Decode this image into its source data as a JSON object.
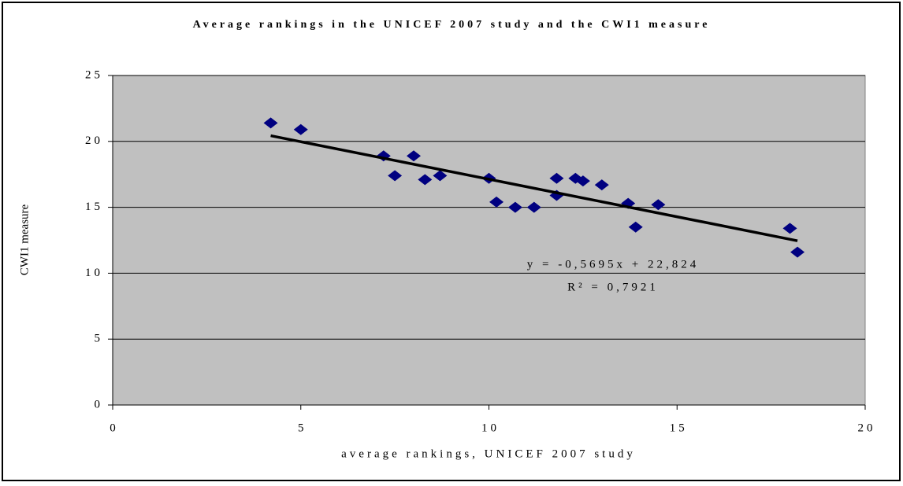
{
  "chart_data": {
    "type": "scatter",
    "title": "Average rankings in the UNICEF 2007 study and the CWI1 measure",
    "x_label": "average rankings, UNICEF 2007 study",
    "y_label": "CWI1 measure",
    "x": [
      4.2,
      5.0,
      7.2,
      7.5,
      8.0,
      8.3,
      8.7,
      10.0,
      10.2,
      10.7,
      11.2,
      11.8,
      11.8,
      12.3,
      12.5,
      13.0,
      13.7,
      13.9,
      14.5,
      18.0,
      18.2
    ],
    "values": [
      21.4,
      20.9,
      18.9,
      17.4,
      18.9,
      17.1,
      17.4,
      17.2,
      15.4,
      15.0,
      15.0,
      15.9,
      17.2,
      17.2,
      17.0,
      16.7,
      15.3,
      13.5,
      15.2,
      13.4,
      11.6
    ],
    "color": "#000080",
    "xlim": [
      0,
      20
    ],
    "xticks": [
      0,
      5,
      10,
      15,
      20
    ],
    "ylim": [
      0,
      25
    ],
    "yticks": [
      0,
      5,
      10,
      15,
      20,
      25
    ],
    "grid": true,
    "trendline": {
      "slope": -0.5695,
      "intercept": 22.824,
      "color": "#000000",
      "equation": "y = -0,5695x + 22,824",
      "r_squared": "R² = 0,7921"
    }
  }
}
